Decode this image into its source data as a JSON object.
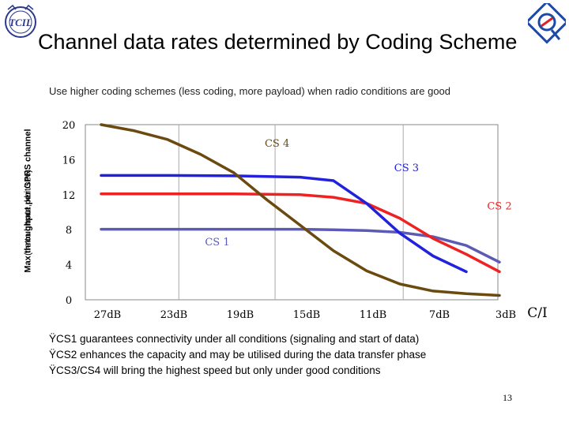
{
  "slide": {
    "title": "Channel data rates determined by Coding Scheme",
    "subtitle": "Use higher coding schemes (less coding, more payload) when radio conditions are good",
    "page_number": "13",
    "bullets": [
      "ŸCS1 guarantees connectivity under all conditions (signaling and start of data)",
      "ŸCS2 enhances the capacity and may be utilised during the data transfer phase",
      "ŸCS3/CS4 will bring the highest speed but only under good conditions"
    ],
    "logo_left_icon": "institute-logo-icon",
    "logo_right_icon": "brand-logo-icon"
  },
  "chart_data": {
    "type": "line",
    "xlabel": "C/I",
    "ylabel": "Max throughput per GPRS channel",
    "ylabel_sub": "(netto bitrate, kbit/sec)",
    "categories": [
      "27dB",
      "23dB",
      "19dB",
      "15dB",
      "11dB",
      "7dB",
      "3dB"
    ],
    "yticks": [
      0,
      4,
      8,
      12,
      16,
      20
    ],
    "ylim": [
      0,
      20
    ],
    "grid": "vertical",
    "series": [
      {
        "name": "CS 1",
        "color": "#5b5bb5",
        "x": [
          0,
          1,
          2,
          3,
          3.5,
          4,
          4.5,
          5,
          5.5,
          6
        ],
        "y": [
          8.05,
          8.05,
          8.05,
          8.05,
          8.0,
          7.9,
          7.7,
          7.2,
          6.2,
          4.3
        ]
      },
      {
        "name": "CS 2",
        "color": "#ee2222",
        "x": [
          0,
          1,
          2,
          2.5,
          3,
          3.5,
          4,
          4.5,
          5,
          5.5,
          6
        ],
        "y": [
          12.1,
          12.1,
          12.1,
          12.05,
          12.0,
          11.7,
          11.0,
          9.3,
          7.0,
          5.2,
          3.2
        ]
      },
      {
        "name": "CS 3",
        "color": "#2222dd",
        "x": [
          0,
          1,
          2,
          3,
          3.5,
          4,
          4.5,
          5,
          5.5
        ],
        "y": [
          14.2,
          14.2,
          14.15,
          14.0,
          13.6,
          11.0,
          7.6,
          5.0,
          3.2
        ]
      },
      {
        "name": "CS 4",
        "color": "#6b4a10",
        "x": [
          0,
          0.5,
          1,
          1.5,
          2,
          2.5,
          3,
          3.5,
          4,
          4.5,
          5,
          5.5,
          6
        ],
        "y": [
          20.0,
          19.3,
          18.3,
          16.6,
          14.5,
          11.4,
          8.5,
          5.6,
          3.3,
          1.8,
          1.0,
          0.7,
          0.5
        ]
      }
    ],
    "series_labels": [
      {
        "text": "CS 4",
        "series": "CS 4",
        "x": 2.65,
        "y": 17.5
      },
      {
        "text": "CS 3",
        "series": "CS 3",
        "x": 4.6,
        "y": 14.7
      },
      {
        "text": "CS 2",
        "series": "CS 2",
        "x": 6.0,
        "y": 10.3
      },
      {
        "text": "CS 1",
        "series": "CS 1",
        "x": 1.75,
        "y": 6.2
      }
    ]
  }
}
